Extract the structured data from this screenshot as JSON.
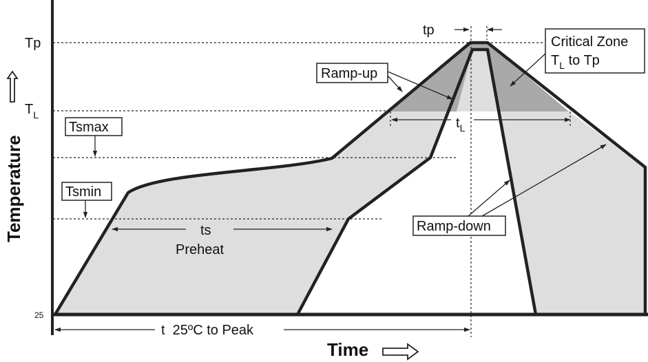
{
  "colors": {
    "line": "#222222",
    "region_fill": "#dedede",
    "critical_fill": "#a9a9a9",
    "background": "#ffffff"
  },
  "axes": {
    "x_title": "Time",
    "y_title": "Temperature",
    "y_ticks": {
      "tp": "Tp",
      "tl_main": "T",
      "tl_sub": "L",
      "base": "25"
    }
  },
  "labels": {
    "tp_interval": "tp",
    "critical_zone_line1": "Critical Zone",
    "critical_zone_line2_main": "T",
    "critical_zone_line2_sub": "L",
    "critical_zone_line2_rest": " to Tp",
    "ramp_up": "Ramp-up",
    "tsmax": "Tsmax",
    "tsmin": "Tsmin",
    "tl_interval_main": "t",
    "tl_interval_sub": "L",
    "ts": "ts",
    "preheat": "Preheat",
    "ramp_down": "Ramp-down",
    "t_to_peak": "t  25ºC to Peak"
  },
  "icons": {
    "y_axis_arrow": "hollow-up-arrow-icon",
    "x_axis_arrow": "hollow-right-arrow-icon"
  }
}
